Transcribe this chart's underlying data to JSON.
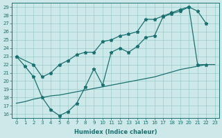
{
  "xlabel": "Humidex (Indice chaleur)",
  "xlim": [
    -0.5,
    23.5
  ],
  "ylim": [
    15.5,
    29.5
  ],
  "xticks": [
    0,
    1,
    2,
    3,
    4,
    5,
    6,
    7,
    8,
    9,
    10,
    11,
    12,
    13,
    14,
    15,
    16,
    17,
    18,
    19,
    20,
    21,
    22,
    23
  ],
  "yticks": [
    16,
    17,
    18,
    19,
    20,
    21,
    22,
    23,
    24,
    25,
    26,
    27,
    28,
    29
  ],
  "bg_color": "#cce8e8",
  "line_color": "#1a7070",
  "grid_color": "#99cccc",
  "line1_x": [
    0,
    2,
    3,
    4,
    5,
    6,
    7,
    8,
    9,
    10,
    11,
    12,
    13,
    14,
    15,
    16,
    17,
    18,
    19,
    20,
    21,
    22
  ],
  "line1_y": [
    23,
    22,
    20.5,
    21.0,
    22.0,
    22.5,
    23.2,
    23.5,
    23.5,
    24.8,
    25.0,
    25.5,
    25.7,
    26.0,
    27.5,
    27.5,
    27.9,
    28.3,
    28.7,
    29.0,
    28.5,
    27.0
  ],
  "line2_x": [
    0,
    1,
    2,
    3,
    4,
    5,
    6,
    7,
    8,
    9,
    10,
    11,
    12,
    13,
    14,
    15,
    16,
    17,
    18,
    19,
    20,
    21,
    22
  ],
  "line2_y": [
    23.0,
    21.8,
    20.5,
    18.0,
    16.5,
    15.8,
    16.3,
    17.3,
    19.3,
    21.5,
    19.5,
    23.5,
    24.0,
    23.5,
    24.2,
    25.3,
    25.5,
    27.8,
    28.2,
    28.5,
    29.0,
    22.0,
    22.0
  ],
  "line3_x": [
    0,
    1,
    2,
    3,
    4,
    5,
    6,
    7,
    8,
    9,
    10,
    11,
    12,
    13,
    14,
    15,
    16,
    17,
    18,
    19,
    20,
    21,
    22,
    23
  ],
  "line3_y": [
    17.3,
    17.5,
    17.8,
    18.0,
    18.2,
    18.3,
    18.5,
    18.7,
    18.9,
    19.1,
    19.3,
    19.5,
    19.7,
    19.9,
    20.1,
    20.3,
    20.5,
    20.8,
    21.1,
    21.4,
    21.6,
    21.8,
    22.0,
    22.0
  ]
}
